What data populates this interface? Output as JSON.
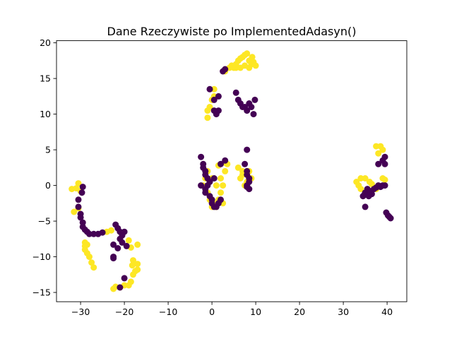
{
  "chart_data": {
    "type": "scatter",
    "title": "Dane Rzeczywiste po ImplementedAdasyn()",
    "xlabel": "",
    "ylabel": "",
    "xlim": [
      -35.5,
      44.5
    ],
    "ylim": [
      -16.3,
      20.3
    ],
    "xticks": [
      -30,
      -20,
      -10,
      0,
      10,
      20,
      30,
      40
    ],
    "yticks": [
      -15,
      -10,
      -5,
      0,
      5,
      10,
      15,
      20
    ],
    "grid": false,
    "legend": "none",
    "colors": {
      "class_0": "#440154",
      "class_1": "#fde725"
    },
    "series": [
      {
        "class": 1,
        "points": [
          [
            -32,
            -0.5
          ],
          [
            -31,
            -0.4
          ],
          [
            -30.5,
            0.3
          ],
          [
            -30,
            -0.8
          ],
          [
            -31.5,
            -3.7
          ],
          [
            -30.5,
            -3.2
          ],
          [
            -29,
            -8
          ],
          [
            -29,
            -8.5
          ],
          [
            -29,
            -9
          ],
          [
            -28.5,
            -8.3
          ],
          [
            -28,
            -10
          ],
          [
            -27.5,
            -10.8
          ],
          [
            -27,
            -11.5
          ],
          [
            -28.5,
            -9.5
          ],
          [
            -24,
            -6.5
          ],
          [
            -23,
            -6.3
          ],
          [
            -19,
            -7.7
          ],
          [
            -18.5,
            -8.7
          ],
          [
            -17,
            -8.3
          ],
          [
            -18,
            -10.5
          ],
          [
            -17,
            -11
          ],
          [
            -17.5,
            -12
          ],
          [
            -18,
            -12.5
          ],
          [
            -18.5,
            -13.5
          ],
          [
            -19,
            -14
          ],
          [
            -20,
            -14
          ],
          [
            -21,
            -14.3
          ],
          [
            -22,
            -14.2
          ],
          [
            -22.5,
            -14.5
          ],
          [
            -17,
            -11.8
          ],
          [
            -18.2,
            -11.2
          ],
          [
            -2,
            0
          ],
          [
            -1.5,
            1
          ],
          [
            -1,
            2
          ],
          [
            -1,
            -1
          ],
          [
            0,
            -3
          ],
          [
            1,
            -3
          ],
          [
            1.5,
            -2
          ],
          [
            2,
            -1
          ],
          [
            2.5,
            0
          ],
          [
            2,
            1
          ],
          [
            3,
            2
          ],
          [
            3.5,
            3
          ],
          [
            1,
            0
          ],
          [
            0,
            1
          ],
          [
            -0.5,
            -2
          ],
          [
            0.5,
            -2.5
          ],
          [
            2.5,
            -2.5
          ],
          [
            1.5,
            2.8
          ],
          [
            3,
            3.2
          ],
          [
            6,
            2.5
          ],
          [
            7,
            2
          ],
          [
            7,
            1.5
          ],
          [
            8,
            0.5
          ],
          [
            9,
            1
          ],
          [
            8.5,
            2
          ],
          [
            6.5,
            1
          ],
          [
            7.5,
            0
          ],
          [
            -1,
            9.5
          ],
          [
            -1,
            10.5
          ],
          [
            -0.5,
            11
          ],
          [
            0,
            12
          ],
          [
            0.5,
            12.5
          ],
          [
            0.5,
            13.5
          ],
          [
            3,
            16
          ],
          [
            4,
            16.5
          ],
          [
            4.5,
            16.8
          ],
          [
            5,
            16.5
          ],
          [
            5.5,
            17
          ],
          [
            6,
            17.5
          ],
          [
            6.5,
            17.8
          ],
          [
            7,
            18
          ],
          [
            7.5,
            18.3
          ],
          [
            8,
            18.5
          ],
          [
            8.5,
            17.5
          ],
          [
            9,
            17
          ],
          [
            9.5,
            17.3
          ],
          [
            10,
            16.8
          ],
          [
            6.5,
            16.5
          ],
          [
            7.5,
            16.8
          ],
          [
            8.5,
            16.5
          ],
          [
            5.5,
            16.5
          ],
          [
            9.2,
            18
          ],
          [
            33,
            0.5
          ],
          [
            33.5,
            0
          ],
          [
            34,
            1
          ],
          [
            35,
            1
          ],
          [
            36,
            0.5
          ],
          [
            36.5,
            0.2
          ],
          [
            37.5,
            5.5
          ],
          [
            38.5,
            5.5
          ],
          [
            39,
            5
          ],
          [
            38,
            4.5
          ],
          [
            39,
            1
          ],
          [
            39.5,
            0.8
          ],
          [
            37.5,
            -0.5
          ],
          [
            36,
            -0.8
          ],
          [
            34,
            -0.5
          ]
        ]
      },
      {
        "class": 0,
        "points": [
          [
            -29.5,
            -0.2
          ],
          [
            -29.7,
            -1
          ],
          [
            -30.5,
            -2
          ],
          [
            -30.5,
            -3
          ],
          [
            -30,
            -4
          ],
          [
            -30,
            -4.5
          ],
          [
            -29.5,
            -5.2
          ],
          [
            -29.5,
            -5.8
          ],
          [
            -29,
            -6.2
          ],
          [
            -28.5,
            -6.5
          ],
          [
            -28,
            -6.8
          ],
          [
            -27,
            -6.8
          ],
          [
            -26,
            -6.8
          ],
          [
            -25,
            -6.6
          ],
          [
            -22,
            -5.5
          ],
          [
            -21.5,
            -6
          ],
          [
            -21,
            -6.5
          ],
          [
            -20.5,
            -7
          ],
          [
            -20,
            -6.5
          ],
          [
            -21,
            -7.5
          ],
          [
            -20.5,
            -8
          ],
          [
            -19.5,
            -8.5
          ],
          [
            -22.5,
            -8.3
          ],
          [
            -21.5,
            -8.8
          ],
          [
            -22.5,
            -10
          ],
          [
            -22.5,
            -10.2
          ],
          [
            -20,
            -13
          ],
          [
            -21,
            -14.3
          ],
          [
            -2.5,
            4
          ],
          [
            -2,
            3
          ],
          [
            -1.5,
            2
          ],
          [
            -1.5,
            1.5
          ],
          [
            -1,
            1
          ],
          [
            -0.5,
            0.5
          ],
          [
            -1,
            0
          ],
          [
            -1.5,
            -1
          ],
          [
            -0.5,
            -1.5
          ],
          [
            0,
            -2
          ],
          [
            0,
            -2.5
          ],
          [
            0.5,
            -3
          ],
          [
            1,
            -3
          ],
          [
            1.5,
            -2.5
          ],
          [
            2,
            -2
          ],
          [
            0.5,
            1
          ],
          [
            2,
            3
          ],
          [
            3,
            3.5
          ],
          [
            -2.5,
            0
          ],
          [
            -1.5,
            -0.5
          ],
          [
            -2,
            2.5
          ],
          [
            8,
            5
          ],
          [
            7.5,
            3
          ],
          [
            8,
            2
          ],
          [
            8,
            1.5
          ],
          [
            8.5,
            1
          ],
          [
            8.5,
            0.5
          ],
          [
            8,
            0
          ],
          [
            8.5,
            -0.5
          ],
          [
            8,
            -0.2
          ],
          [
            -0.5,
            13.5
          ],
          [
            0.5,
            12
          ],
          [
            1.5,
            12.5
          ],
          [
            1.5,
            10.5
          ],
          [
            1,
            10
          ],
          [
            0.5,
            10.5
          ],
          [
            2.5,
            16
          ],
          [
            3,
            16.3
          ],
          [
            5.5,
            13
          ],
          [
            6,
            12
          ],
          [
            6.5,
            11.5
          ],
          [
            7,
            11
          ],
          [
            7.5,
            11
          ],
          [
            8,
            10.5
          ],
          [
            8.5,
            11.5
          ],
          [
            9,
            11
          ],
          [
            9.5,
            10
          ],
          [
            9.8,
            12
          ],
          [
            35,
            -3
          ],
          [
            34.5,
            -1.5
          ],
          [
            35,
            -1
          ],
          [
            35.5,
            -0.5
          ],
          [
            36,
            -1
          ],
          [
            36.5,
            -1.2
          ],
          [
            37,
            -0.5
          ],
          [
            37.5,
            -0.3
          ],
          [
            38,
            0
          ],
          [
            38.5,
            -0.2
          ],
          [
            39,
            0
          ],
          [
            39.5,
            0
          ],
          [
            38,
            3
          ],
          [
            39,
            3.5
          ],
          [
            39.5,
            3
          ],
          [
            39.5,
            4
          ],
          [
            39.8,
            -3.8
          ],
          [
            40.2,
            -4.2
          ],
          [
            40.5,
            -4.4
          ],
          [
            40.8,
            -4.6
          ],
          [
            34.8,
            -1.3
          ],
          [
            35.8,
            -1.5
          ],
          [
            36.2,
            -0.8
          ]
        ]
      }
    ]
  }
}
